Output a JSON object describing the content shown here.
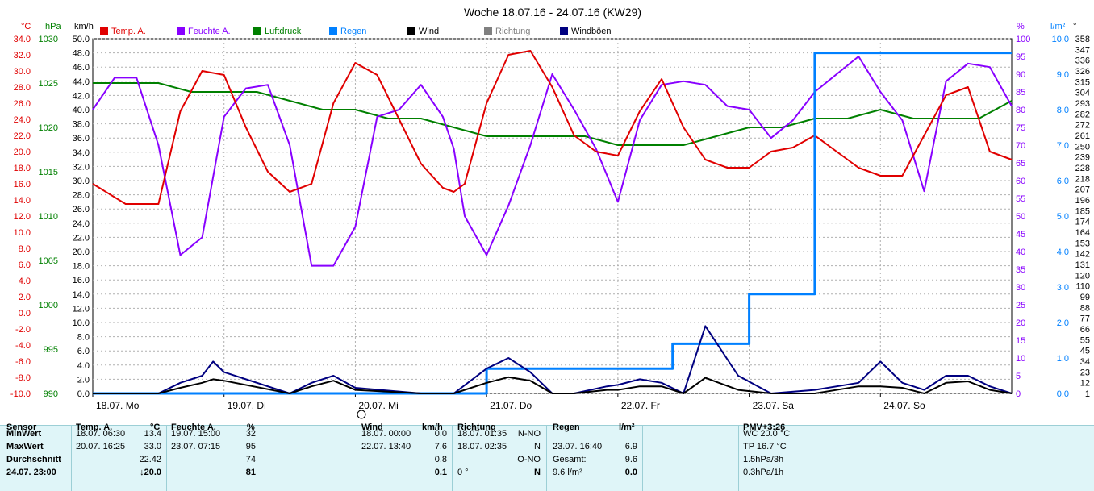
{
  "chart_data": {
    "type": "line",
    "title": "Woche 18.07.16 - 24.07.16 (KW29)",
    "axes": {
      "temp": {
        "unit": "°C",
        "min": -10,
        "max": 34,
        "ticks": [
          "34.0",
          "32.0",
          "30.0",
          "28.0",
          "26.0",
          "24.0",
          "22.0",
          "20.0",
          "18.0",
          "16.0",
          "14.0",
          "12.0",
          "10.0",
          "8.0",
          "6.0",
          "4.0",
          "2.0",
          "0.0",
          "-2.0",
          "-4.0",
          "-6.0",
          "-8.0",
          "-10.0"
        ]
      },
      "pressure": {
        "unit": "hPa",
        "min": 990,
        "max": 1030,
        "ticks": [
          "1030",
          "1025",
          "1020",
          "1015",
          "1010",
          "1005",
          "1000",
          "995",
          "990"
        ]
      },
      "wind": {
        "unit": "km/h",
        "min": 0,
        "max": 50,
        "ticks": [
          "50.0",
          "48.0",
          "46.0",
          "44.0",
          "42.0",
          "40.0",
          "38.0",
          "36.0",
          "34.0",
          "32.0",
          "30.0",
          "28.0",
          "26.0",
          "24.0",
          "22.0",
          "20.0",
          "18.0",
          "16.0",
          "14.0",
          "12.0",
          "10.0",
          "8.0",
          "6.0",
          "4.0",
          "2.0",
          "0.0"
        ]
      },
      "humidity": {
        "unit": "%",
        "min": 0,
        "max": 100,
        "ticks": [
          "100",
          "95",
          "90",
          "85",
          "80",
          "75",
          "70",
          "65",
          "60",
          "55",
          "50",
          "45",
          "40",
          "35",
          "30",
          "25",
          "20",
          "15",
          "10",
          "5",
          "0"
        ]
      },
      "rain": {
        "unit": "l/m²",
        "min": 0,
        "max": 10,
        "ticks": [
          "10.0",
          "9.0",
          "8.0",
          "7.0",
          "6.0",
          "5.0",
          "4.0",
          "3.0",
          "2.0",
          "1.0",
          "0.0"
        ]
      },
      "direction": {
        "unit": "°",
        "min": 0,
        "max": 360,
        "ticks": [
          "358",
          "347",
          "336",
          "326",
          "315",
          "304",
          "293",
          "282",
          "272",
          "261",
          "250",
          "239",
          "228",
          "218",
          "207",
          "196",
          "185",
          "174",
          "164",
          "153",
          "142",
          "131",
          "120",
          "110",
          "99",
          "88",
          "77",
          "66",
          "55",
          "45",
          "34",
          "23",
          "12",
          "1"
        ]
      }
    },
    "x_days": [
      "18.07. Mo",
      "19.07. Di",
      "20.07. Mi",
      "21.07. Do",
      "22.07. Fr",
      "23.07. Sa",
      "24.07. So"
    ],
    "x_unit_note": "",
    "legend": [
      {
        "name": "Temp. A.",
        "color": "#e00000"
      },
      {
        "name": "Feuchte A.",
        "color": "#8800ff"
      },
      {
        "name": "Luftdruck",
        "color": "#008000"
      },
      {
        "name": "Regen",
        "color": "#0080ff"
      },
      {
        "name": "Wind",
        "color": "#000000"
      },
      {
        "name": "Richtung",
        "color": "#808080"
      },
      {
        "name": "Windböen",
        "color": "#000080"
      }
    ],
    "series": [
      {
        "name": "Temp. A.",
        "axis": "temp",
        "color": "#e00000",
        "x": [
          0,
          6,
          12,
          16,
          20,
          24,
          28,
          32,
          36,
          40,
          44,
          48,
          52,
          56,
          60,
          64,
          66,
          68,
          72,
          76,
          80,
          84,
          88,
          92,
          96,
          100,
          104,
          108,
          112,
          116,
          120,
          124,
          128,
          132,
          136,
          140,
          144,
          148,
          152,
          156,
          160,
          164,
          168
        ],
        "y": [
          16,
          13.5,
          13.5,
          25,
          30,
          29.5,
          23,
          17.5,
          15,
          16,
          26,
          31,
          29.5,
          24,
          18.5,
          15.5,
          15,
          16,
          26,
          32,
          32.5,
          28,
          22,
          20,
          19.5,
          25,
          29,
          23,
          19,
          18,
          18,
          20,
          20.5,
          22,
          20,
          18,
          17,
          17,
          22,
          27,
          28,
          20,
          19
        ]
      },
      {
        "name": "Feuchte A.",
        "axis": "humidity",
        "color": "#8800ff",
        "x": [
          0,
          4,
          8,
          12,
          16,
          20,
          24,
          28,
          32,
          36,
          40,
          44,
          48,
          52,
          56,
          60,
          64,
          66,
          68,
          72,
          76,
          80,
          84,
          88,
          92,
          96,
          100,
          104,
          108,
          112,
          116,
          120,
          124,
          128,
          132,
          136,
          140,
          144,
          148,
          152,
          156,
          160,
          164,
          168
        ],
        "y": [
          80,
          89,
          89,
          70,
          39,
          44,
          78,
          86,
          87,
          70,
          36,
          36,
          47,
          78,
          80,
          87,
          78,
          69,
          50,
          39,
          53,
          70,
          90,
          80,
          69,
          54,
          77,
          87,
          88,
          87,
          81,
          80,
          72,
          77,
          85,
          90,
          95,
          85,
          77,
          57,
          88,
          93,
          92,
          81
        ]
      },
      {
        "name": "Luftdruck",
        "axis": "pressure",
        "color": "#008000",
        "x": [
          0,
          6,
          12,
          18,
          24,
          30,
          36,
          42,
          48,
          54,
          60,
          66,
          72,
          78,
          84,
          90,
          96,
          102,
          108,
          114,
          120,
          126,
          132,
          138,
          144,
          150,
          156,
          162,
          168
        ],
        "y": [
          1025,
          1025,
          1025,
          1024,
          1024,
          1024,
          1023,
          1022,
          1022,
          1021,
          1021,
          1020,
          1019,
          1019,
          1019,
          1019,
          1018,
          1018,
          1018,
          1019,
          1020,
          1020,
          1021,
          1021,
          1022,
          1021,
          1021,
          1021,
          1023
        ]
      },
      {
        "name": "Wind",
        "axis": "wind",
        "color": "#000000",
        "x": [
          0,
          12,
          16,
          20,
          22,
          24,
          36,
          40,
          44,
          48,
          60,
          66,
          72,
          76,
          80,
          84,
          88,
          94,
          96,
          100,
          104,
          108,
          112,
          118,
          124,
          132,
          140,
          144,
          148,
          152,
          156,
          160,
          164,
          168
        ],
        "y": [
          0,
          0,
          0.8,
          1.5,
          2,
          1.8,
          0,
          1,
          1.8,
          0.5,
          0,
          0,
          1.5,
          2.3,
          1.8,
          0,
          0,
          0.5,
          0.5,
          1,
          1,
          0,
          2.2,
          0.5,
          0,
          0,
          1,
          1,
          0.8,
          0,
          1.5,
          1.7,
          0.5,
          0
        ]
      },
      {
        "name": "Windböen",
        "axis": "wind",
        "color": "#000080",
        "x": [
          0,
          12,
          16,
          20,
          22,
          24,
          36,
          40,
          44,
          48,
          60,
          66,
          72,
          76,
          80,
          84,
          88,
          94,
          96,
          100,
          104,
          108,
          112,
          118,
          124,
          132,
          140,
          144,
          148,
          152,
          156,
          160,
          164,
          168
        ],
        "y": [
          0,
          0,
          1.5,
          2.5,
          4.5,
          3,
          0,
          1.5,
          2.5,
          0.8,
          0,
          0,
          3.5,
          5,
          3,
          0,
          0,
          1,
          1.2,
          2,
          1.5,
          0,
          9.5,
          2.5,
          0,
          0.5,
          1.5,
          4.5,
          1.5,
          0.5,
          2.5,
          2.5,
          1,
          0
        ]
      },
      {
        "name": "Regen",
        "axis": "rain",
        "color": "#0080ff",
        "x": [
          0,
          72,
          72,
          106,
          106,
          120,
          120,
          132,
          132,
          168
        ],
        "y": [
          0,
          0,
          0.7,
          0.7,
          1.4,
          1.4,
          2.8,
          2.8,
          9.6,
          9.6
        ]
      }
    ]
  },
  "table": {
    "sensor": {
      "header": "Sensor",
      "rows": [
        "MinWert",
        "MaxWert",
        "Durchschnitt",
        "24.07. 23:00"
      ]
    },
    "temp": {
      "header": "Temp. A.",
      "unit": "°C",
      "rows": [
        {
          "time": "18.07. 06:30",
          "value": "13.4"
        },
        {
          "time": "20.07. 16:25",
          "value": "33.0"
        },
        {
          "time": "",
          "value": "22.42"
        },
        {
          "time": "",
          "value": "↓20.0"
        }
      ]
    },
    "hum": {
      "header": "Feuchte A.",
      "unit": "%",
      "rows": [
        {
          "time": "19.07. 15:00",
          "value": "32"
        },
        {
          "time": "23.07. 07:15",
          "value": "95"
        },
        {
          "time": "",
          "value": "74"
        },
        {
          "time": "",
          "value": "81"
        }
      ]
    },
    "wind": {
      "header": "Wind",
      "unit": "km/h",
      "rows": [
        {
          "time": "18.07. 00:00",
          "value": "0.0"
        },
        {
          "time": "22.07. 13:40",
          "value": "7.6"
        },
        {
          "time": "",
          "value": "0.8"
        },
        {
          "time": "",
          "value": "0.1"
        }
      ]
    },
    "dir": {
      "header": "Richtung",
      "rows": [
        {
          "time": "18.07. 01:35",
          "value": "N-NO"
        },
        {
          "time": "18.07. 02:35",
          "value": "N"
        },
        {
          "time": "",
          "value": "O-NO"
        },
        {
          "time": "0 °",
          "value": "N"
        }
      ]
    },
    "rain": {
      "header": "Regen",
      "unit": "l/m²",
      "rows": [
        {
          "time": "",
          "value": ""
        },
        {
          "time": "23.07. 16:40",
          "value": "6.9"
        },
        {
          "time": "Gesamt:",
          "value": "9.6"
        },
        {
          "time": "9.6 l/m²",
          "value": "0.0"
        }
      ]
    },
    "pmv": {
      "header": "PMV+3:26",
      "rows": [
        "WC 20.0 °C",
        "TP 16.7 °C",
        "1.5hPa/3h",
        "0.3hPa/1h"
      ]
    }
  }
}
